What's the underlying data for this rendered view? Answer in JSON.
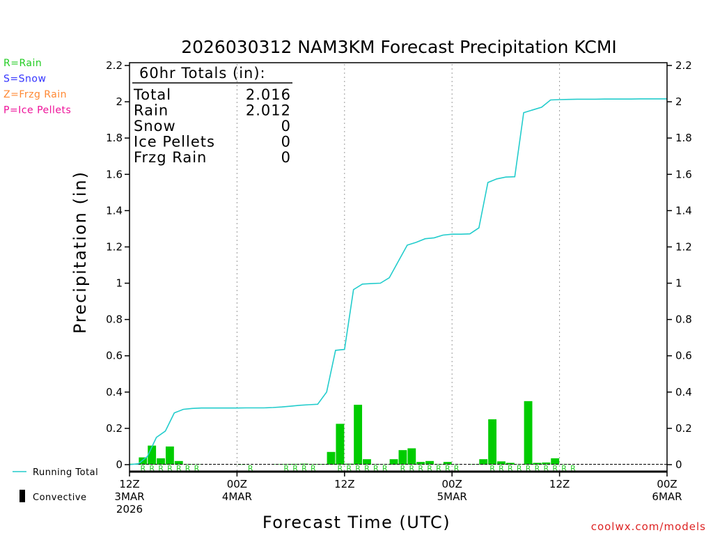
{
  "chart_data": {
    "type": "bar",
    "title": "2026030312 NAM3KM Forecast Precipitation KCMI",
    "xlabel": "Forecast Time (UTC)",
    "ylabel": "Precipitation (in)",
    "ylim": [
      0,
      2.2
    ],
    "xlim_hours": [
      0,
      60
    ],
    "y_ticks": [
      "0",
      "0.2",
      "0.4",
      "0.6",
      "0.8",
      "1",
      "1.2",
      "1.4",
      "1.6",
      "1.8",
      "2",
      "2.2"
    ],
    "x_ticks": [
      {
        "hour": 0,
        "lines": [
          "12Z",
          "3MAR",
          "2026"
        ]
      },
      {
        "hour": 12,
        "lines": [
          "00Z",
          "4MAR"
        ]
      },
      {
        "hour": 24,
        "lines": [
          "12Z"
        ]
      },
      {
        "hour": 36,
        "lines": [
          "00Z",
          "5MAR"
        ]
      },
      {
        "hour": 48,
        "lines": [
          "12Z"
        ]
      },
      {
        "hour": 60,
        "lines": [
          "00Z",
          "6MAR"
        ]
      }
    ],
    "type_legend": [
      {
        "text": "R=Rain",
        "color": "#22cc22"
      },
      {
        "text": "S=Snow",
        "color": "#3333ff"
      },
      {
        "text": "Z=Frzg Rain",
        "color": "#ff8833"
      },
      {
        "text": "P=Ice Pellets",
        "color": "#ee1199"
      }
    ],
    "series_legend": {
      "running_total": "Running Total",
      "convective": "Convective"
    },
    "totals": {
      "heading": "60hr Totals (in):",
      "rows": [
        {
          "label": "Total",
          "value": "2.016"
        },
        {
          "label": "Rain",
          "value": "2.012"
        },
        {
          "label": "Snow",
          "value": "0"
        },
        {
          "label": "Ice Pellets",
          "value": "0"
        },
        {
          "label": "Frzg Rain",
          "value": "0"
        }
      ]
    },
    "hourly_precip": {
      "hours": [
        1,
        2,
        3,
        4,
        5,
        6,
        7,
        8,
        9,
        10,
        11,
        12,
        13,
        14,
        15,
        16,
        17,
        18,
        19,
        20,
        21,
        22,
        23,
        24,
        25,
        26,
        27,
        28,
        29,
        30,
        31,
        32,
        33,
        34,
        35,
        36,
        37,
        38,
        39,
        40,
        41,
        42,
        43,
        44,
        45,
        46,
        47,
        48,
        49,
        50,
        51,
        52,
        53,
        54,
        55,
        56,
        57,
        58,
        59,
        60
      ],
      "values": [
        0.005,
        0.04,
        0.105,
        0.035,
        0.1,
        0.02,
        0.003,
        0.002,
        0,
        0,
        0,
        0,
        0.001,
        0,
        0,
        0,
        0.002,
        0.003,
        0.004,
        0.005,
        0.003,
        0.003,
        0.07,
        0.225,
        0.005,
        0.33,
        0.03,
        0.003,
        0.002,
        0.03,
        0.08,
        0.09,
        0.015,
        0.02,
        0.003,
        0.015,
        0.002,
        0,
        0.002,
        0.03,
        0.25,
        0.018,
        0.01,
        0.002,
        0.35,
        0.01,
        0.012,
        0.035,
        0.002,
        0,
        0,
        0,
        0,
        0,
        0,
        0,
        0,
        0,
        0,
        0
      ]
    },
    "running_total": {
      "hours": [
        0,
        1,
        2,
        3,
        4,
        5,
        6,
        7,
        8,
        9,
        10,
        11,
        12,
        13,
        14,
        15,
        16,
        17,
        18,
        19,
        20,
        21,
        22,
        23,
        24,
        25,
        26,
        27,
        28,
        29,
        30,
        31,
        32,
        33,
        34,
        35,
        36,
        37,
        38,
        39,
        40,
        41,
        42,
        43,
        44,
        45,
        46,
        47,
        48,
        49,
        50,
        51,
        52,
        53,
        54,
        55,
        56,
        57,
        58,
        59,
        60
      ],
      "values": [
        0,
        0.005,
        0.045,
        0.15,
        0.185,
        0.285,
        0.305,
        0.31,
        0.312,
        0.312,
        0.312,
        0.312,
        0.312,
        0.313,
        0.313,
        0.313,
        0.315,
        0.318,
        0.322,
        0.327,
        0.33,
        0.333,
        0.4,
        0.63,
        0.635,
        0.965,
        0.995,
        0.998,
        1.0,
        1.03,
        1.12,
        1.21,
        1.225,
        1.245,
        1.25,
        1.265,
        1.27,
        1.27,
        1.272,
        1.305,
        1.555,
        1.575,
        1.585,
        1.587,
        1.94,
        1.955,
        1.97,
        2.01,
        2.012,
        2.013,
        2.014,
        2.014,
        2.014,
        2.015,
        2.015,
        2.015,
        2.015,
        2.016,
        2.016,
        2.016,
        2.016
      ]
    },
    "ptype_row": {
      "label": "R",
      "hours": [
        2,
        3,
        4,
        5,
        6,
        7,
        8,
        14,
        18,
        19,
        20,
        21,
        24,
        25,
        26,
        27,
        28,
        29,
        31,
        32,
        33,
        34,
        35,
        36,
        37,
        41,
        42,
        43,
        44,
        45,
        46,
        47,
        48,
        49,
        50
      ]
    },
    "colors": {
      "bars": "#00cc00",
      "running_total": "#22cccc",
      "ptype_text": "#22cc22",
      "grid": "#999999"
    },
    "credit": "coolwx.com/models"
  }
}
